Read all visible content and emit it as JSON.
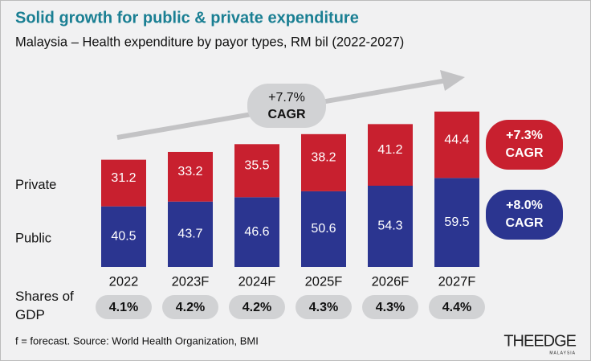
{
  "chart_data": {
    "type": "stacked_bar",
    "title": "Solid growth for public & private expenditure",
    "subtitle": "Malaysia – Health expenditure by payor types, RM bil (2022-2027)",
    "categories": [
      "2022",
      "2023F",
      "2024F",
      "2025F",
      "2026F",
      "2027F"
    ],
    "series": [
      {
        "name": "Public",
        "color": "#2b3590",
        "values": [
          40.5,
          43.7,
          46.6,
          50.6,
          54.3,
          59.5
        ],
        "cagr": [
          "+8.0%",
          "CAGR"
        ]
      },
      {
        "name": "Private",
        "color": "#c8202f",
        "values": [
          31.2,
          33.2,
          35.5,
          38.2,
          41.2,
          44.4
        ],
        "cagr": [
          "+7.3%",
          "CAGR"
        ]
      }
    ],
    "total_cagr": [
      "+7.7%",
      "CAGR"
    ],
    "gdp_shares": {
      "label": "Shares of GDP",
      "values": [
        4.1,
        4.2,
        4.2,
        4.3,
        4.3,
        4.4
      ],
      "value_labels": [
        "4.1%",
        "4.2%",
        "4.2%",
        "4.3%",
        "4.3%",
        "4.4%"
      ]
    },
    "footnote": "f = forecast. Source: World Health Organization, BMI",
    "logo": "THEEDGE",
    "logo_sub": "MALAYSIA"
  }
}
